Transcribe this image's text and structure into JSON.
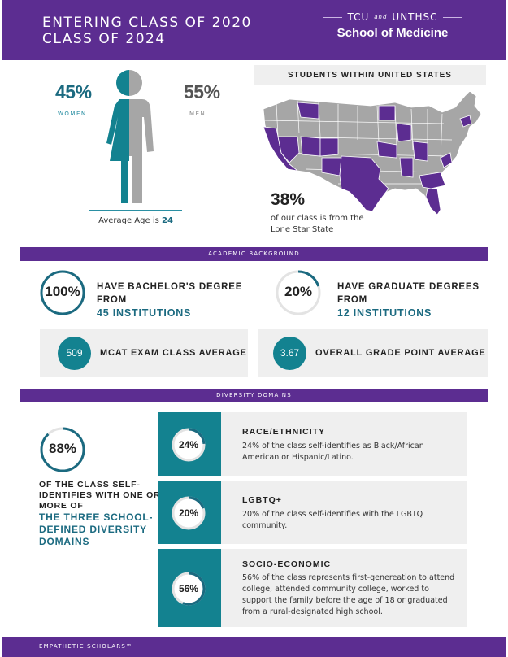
{
  "header": {
    "title_line1": "ENTERING CLASS OF 2020",
    "title_line2": "CLASS OF 2024",
    "logo_left": "TCU",
    "logo_and": "and",
    "logo_right": "UNTHSC",
    "logo_name": "School of Medicine"
  },
  "gender": {
    "women_pct": "45%",
    "women_label": "WOMEN",
    "men_pct": "55%",
    "men_label": "MEN",
    "women_fraction": 0.45,
    "age_label": "Average Age is ",
    "age_value": "24"
  },
  "map": {
    "heading": "STUDENTS WITHIN UNITED STATES",
    "texas_pct": "38%",
    "texas_text": "of our class is from the Lone Star State"
  },
  "academic": {
    "heading": "ACADEMIC BACKGROUND",
    "bachelor_pct": "100%",
    "bachelor_fraction": 1.0,
    "bachelor_text": "HAVE BACHELOR'S DEGREE FROM",
    "bachelor_highlight": "45 INSTITUTIONS",
    "grad_pct": "20%",
    "grad_fraction": 0.2,
    "grad_text": "HAVE GRADUATE DEGREES FROM",
    "grad_highlight": "12 INSTITUTIONS",
    "mcat_value": "509",
    "mcat_label": "MCAT EXAM CLASS AVERAGE",
    "gpa_value": "3.67",
    "gpa_label": "OVERALL GRADE POINT AVERAGE"
  },
  "diversity": {
    "heading": "DIVERSITY DOMAINS",
    "overall_pct": "88%",
    "overall_fraction": 0.88,
    "overall_text": "OF THE CLASS SELF-IDENTIFIES WITH ONE OR MORE OF",
    "overall_highlight": "THE THREE SCHOOL-DEFINED DIVERSITY DOMAINS",
    "domains": [
      {
        "pct": "24%",
        "fraction": 0.24,
        "title": "RACE/ETHNICITY",
        "desc": "24% of the class self-identifies as Black/African American or Hispanic/Latino."
      },
      {
        "pct": "20%",
        "fraction": 0.2,
        "title": "LGBTQ+",
        "desc": "20% of the class self-identifies with the LGBTQ community."
      },
      {
        "pct": "56%",
        "fraction": 0.56,
        "title": "SOCIO-ECONOMIC",
        "desc": "56% of the class represents first-genereation to attend college, attended community college, worked to support the family before the age of 18 or graduated from a rural-designated high school."
      }
    ]
  },
  "footer": {
    "text": "EMPATHETIC SCHOLARS™"
  },
  "colors": {
    "purple": "#5c2d91",
    "teal": "#138290",
    "dark_teal": "#1b6a80",
    "grey": "#a6a6a6",
    "light_grey": "#efefef"
  }
}
